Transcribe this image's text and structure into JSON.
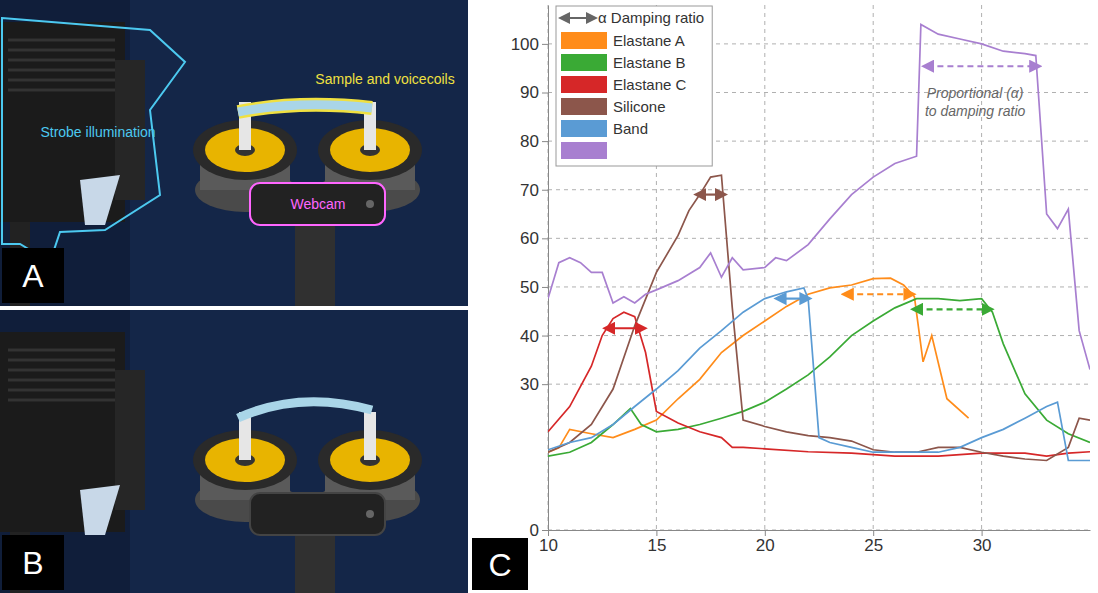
{
  "panels": [
    {
      "letter": "A",
      "labels": [
        {
          "text": "Strobe illumination",
          "color": "#4cc9f0"
        },
        {
          "text": "Sample and voicecoils",
          "color": "#f0e040"
        },
        {
          "text": "Webcam",
          "color": "#ff66ff"
        }
      ]
    },
    {
      "letter": "B"
    }
  ],
  "chart_data": {
    "type": "line",
    "panel_label": "C",
    "legend_title": "α Damping ratio",
    "legend": "upper left",
    "grid": true,
    "xlim": [
      10,
      35
    ],
    "xticks": [
      10,
      15,
      20,
      25,
      30
    ],
    "ylim": [
      0,
      108
    ],
    "yticks": [
      0,
      30,
      40,
      50,
      60,
      70,
      80,
      90,
      100
    ],
    "annotation": [
      "Proportional (α)",
      "to damping ratio"
    ],
    "series": [
      {
        "name": "Elastane A",
        "color": "#ff8c1a",
        "x": [
          10,
          10.5,
          11,
          12,
          13,
          14,
          15,
          16,
          17,
          18,
          19,
          20,
          21,
          22,
          23,
          24,
          25,
          25.8,
          26.4,
          26.9,
          27.3,
          27.7,
          28.4,
          29.4
        ],
        "values": [
          16,
          16.9,
          20.7,
          19.8,
          19,
          20.7,
          22.6,
          27,
          31,
          36.5,
          40,
          43,
          46,
          48.5,
          49.8,
          50.4,
          51.7,
          51.8,
          50.4,
          48,
          34.6,
          40,
          27,
          23
        ],
        "damping": {
          "x": [
            23.8,
            26.7
          ],
          "y": 48.5,
          "line_style": "dashed"
        }
      },
      {
        "name": "Elastane B",
        "color": "#3aaa35",
        "x": [
          10,
          11,
          12,
          13,
          13.8,
          14.3,
          15,
          16,
          17,
          18,
          19,
          20,
          21,
          22,
          23,
          24,
          25,
          26,
          27,
          28,
          29,
          30,
          30.5,
          31,
          32,
          33,
          34,
          35
        ],
        "values": [
          15.2,
          16,
          18,
          21.7,
          25,
          21.7,
          20.2,
          20.7,
          21.7,
          23,
          24.4,
          26.3,
          29,
          31.9,
          35.6,
          40,
          43,
          45.7,
          47.6,
          47.6,
          47.2,
          47.6,
          44.8,
          38.3,
          28,
          22.6,
          19.8,
          18
        ],
        "damping": {
          "x": [
            27,
            30.3
          ],
          "y": 45.4,
          "line_style": "dashed"
        }
      },
      {
        "name": "Elastane C",
        "color": "#d62728",
        "x": [
          10,
          11,
          12,
          12.5,
          13,
          13.5,
          14,
          14.5,
          15,
          16,
          17,
          18,
          18.5,
          19,
          20,
          22,
          24,
          26,
          28,
          30,
          32,
          33,
          34,
          35
        ],
        "values": [
          20.2,
          25.4,
          33.7,
          40,
          43.5,
          44.8,
          43.9,
          36.5,
          24.4,
          22,
          20.2,
          19,
          17,
          17,
          16.7,
          16.1,
          15.8,
          15.2,
          15.2,
          15.8,
          15.8,
          15.2,
          15.8,
          16.1
        ],
        "damping": {
          "x": [
            12.8,
            14.3
          ],
          "y": 41.5,
          "line_style": "solid"
        }
      },
      {
        "name": "Silicone",
        "color": "#8c564b",
        "x": [
          10,
          11,
          12,
          13,
          14,
          15,
          16,
          16.5,
          17,
          17.5,
          18,
          18.5,
          19,
          20,
          21,
          22,
          23,
          24,
          25,
          26,
          27,
          28,
          29,
          30,
          31,
          32,
          33,
          34,
          34.5,
          35
        ],
        "values": [
          16,
          18,
          21.7,
          29,
          42,
          53,
          60.6,
          65.7,
          69,
          72.6,
          73,
          45.7,
          22.6,
          21.3,
          20.2,
          19.4,
          19,
          18.3,
          16.5,
          16,
          16,
          17,
          17,
          16,
          15.2,
          14.6,
          14.3,
          17,
          23,
          22.6
        ],
        "damping": {
          "x": [
            17,
            18
          ],
          "y": 69,
          "line_style": "solid"
        }
      },
      {
        "name": "Band",
        "color": "#5a9bd4",
        "x": [
          10,
          11,
          12,
          13,
          14,
          15,
          16,
          17,
          18,
          19,
          20,
          21,
          21.8,
          22,
          22.5,
          23,
          24,
          25,
          26,
          27,
          28,
          29,
          30,
          31,
          32,
          33,
          33.5,
          34,
          35
        ],
        "values": [
          16.5,
          18,
          19,
          21.7,
          25.4,
          29,
          32.8,
          37.4,
          41,
          44.8,
          47.6,
          49,
          49.8,
          47.6,
          19,
          18,
          17,
          16,
          16,
          16,
          16,
          17,
          19,
          20.7,
          23,
          25.4,
          26.3,
          14.3,
          14.3
        ],
        "damping": {
          "x": [
            20.7,
            21.9
          ],
          "y": 47.6,
          "line_style": "solid"
        }
      },
      {
        "name": null,
        "color": "#a87fd0",
        "x": [
          10,
          10.5,
          11,
          11.5,
          12,
          12.5,
          13,
          13.5,
          14,
          14.5,
          15,
          16,
          17,
          17.5,
          18,
          18.5,
          19,
          20,
          20.5,
          21,
          22,
          23,
          24,
          25,
          26,
          27,
          27.2,
          28,
          29,
          30,
          31,
          32,
          32.5,
          33,
          33.5,
          34,
          34.5,
          35
        ],
        "values": [
          47.6,
          55,
          56,
          55,
          53,
          53,
          46.7,
          48,
          46.7,
          48.5,
          49.4,
          51.3,
          54,
          57,
          52,
          56,
          53.5,
          54,
          56,
          55.4,
          58.7,
          64,
          69,
          72.6,
          75.4,
          76.9,
          104,
          102,
          101,
          100,
          98.5,
          98,
          97.6,
          65,
          62,
          66,
          41,
          33
        ],
        "damping": {
          "x": [
            27.5,
            32.5
          ],
          "y": 95.4,
          "line_style": "dashed"
        }
      }
    ]
  }
}
